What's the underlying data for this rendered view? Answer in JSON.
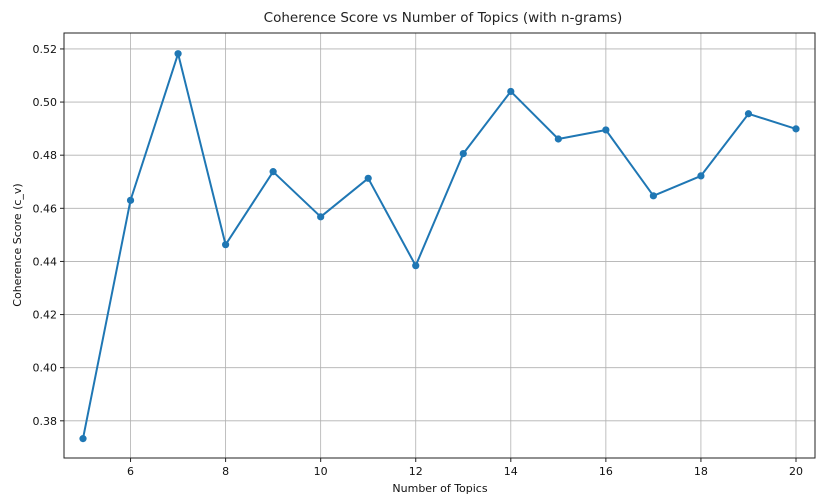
{
  "chart_data": {
    "type": "line",
    "title": "Coherence Score vs Number of Topics (with n-grams)",
    "xlabel": "Number of Topics",
    "ylabel": "Coherence Score (c_v)",
    "xlim": [
      4.6,
      20.4
    ],
    "ylim": [
      0.366,
      0.526
    ],
    "xticks": [
      6,
      8,
      10,
      12,
      14,
      16,
      18,
      20
    ],
    "yticks": [
      0.38,
      0.4,
      0.42,
      0.44,
      0.46,
      0.48,
      0.5,
      0.52
    ],
    "grid": true,
    "series": [
      {
        "color": "#1f77b4",
        "x": [
          5,
          6,
          7,
          8,
          9,
          10,
          11,
          12,
          13,
          14,
          15,
          16,
          17,
          18,
          19,
          20
        ],
        "values": [
          0.3733,
          0.463,
          0.5182,
          0.4463,
          0.4738,
          0.4568,
          0.4713,
          0.4384,
          0.4806,
          0.504,
          0.4861,
          0.4895,
          0.4647,
          0.4722,
          0.4956,
          0.4899
        ]
      }
    ]
  }
}
